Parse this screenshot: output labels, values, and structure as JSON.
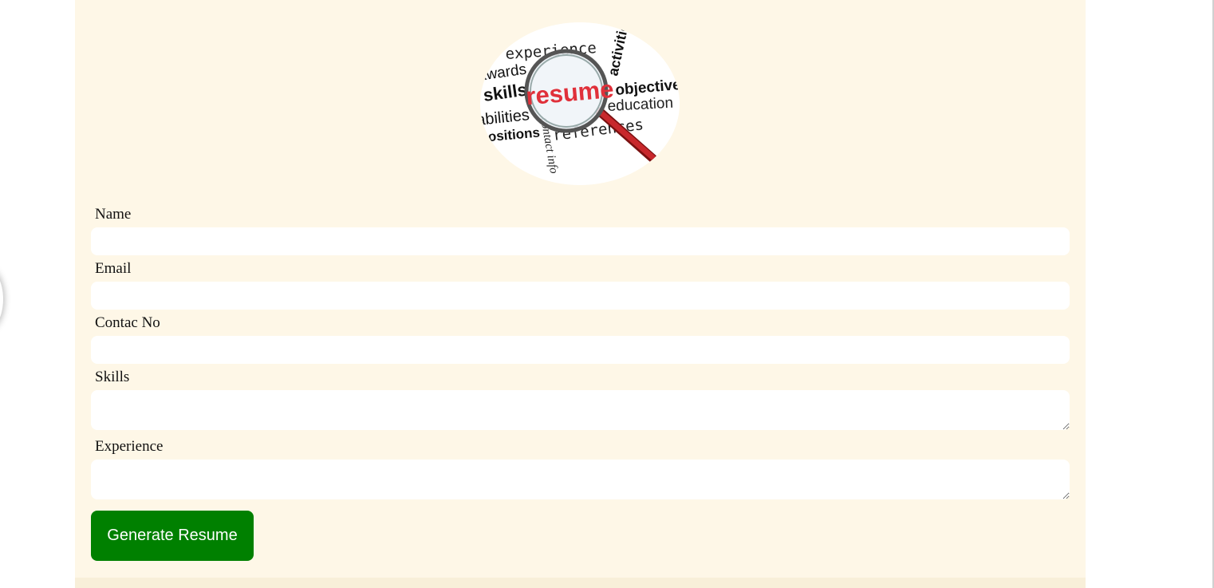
{
  "logo": {
    "words": {
      "experience": "experience",
      "activities": "activities",
      "awards": "awards",
      "skills": "skills",
      "resume": "resume",
      "objective": "objective",
      "education": "education",
      "abilities": "abilities",
      "positions": "positions",
      "references": "references",
      "contact": "contact info"
    },
    "accent": "#e0303a"
  },
  "form": {
    "fields": [
      {
        "label": "Name",
        "value": "",
        "placeholder": ""
      },
      {
        "label": "Email",
        "value": "",
        "placeholder": ""
      },
      {
        "label": "Contac No",
        "value": "",
        "placeholder": ""
      },
      {
        "label": "Skills",
        "value": "",
        "placeholder": ""
      },
      {
        "label": "Experience",
        "value": "",
        "placeholder": ""
      }
    ],
    "submit_label": "Generate Resume"
  },
  "colors": {
    "panel_bg": "#fef7e7",
    "button_bg": "#008000",
    "button_text": "#ffffff"
  }
}
